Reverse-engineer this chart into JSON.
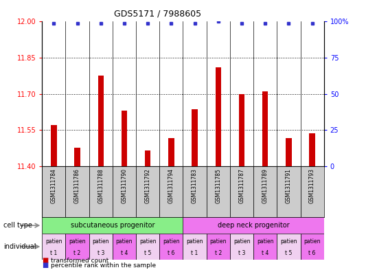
{
  "title": "GDS5171 / 7988605",
  "samples": [
    "GSM1311784",
    "GSM1311786",
    "GSM1311788",
    "GSM1311790",
    "GSM1311792",
    "GSM1311794",
    "GSM1311783",
    "GSM1311785",
    "GSM1311787",
    "GSM1311789",
    "GSM1311791",
    "GSM1311793"
  ],
  "bar_values": [
    11.57,
    11.475,
    11.775,
    11.63,
    11.465,
    11.515,
    11.635,
    11.81,
    11.7,
    11.71,
    11.515,
    11.535
  ],
  "percentile_values": [
    99,
    99,
    99,
    99,
    99,
    99,
    99,
    100,
    99,
    99,
    99,
    99
  ],
  "ylim_left": [
    11.4,
    12.0
  ],
  "ylim_right": [
    0,
    100
  ],
  "yticks_left": [
    11.4,
    11.55,
    11.7,
    11.85,
    12.0
  ],
  "yticks_right": [
    0,
    25,
    50,
    75,
    100
  ],
  "bar_color": "#cc0000",
  "dot_color": "#3333cc",
  "cell_types": [
    "subcutaneous progenitor",
    "deep neck progenitor"
  ],
  "cell_type_colors": [
    "#88ee88",
    "#ee77ee"
  ],
  "individuals": [
    "patien\nt 1",
    "patien\nt 2",
    "patien\nt 3",
    "patien\nt 4",
    "patien\nt 5",
    "patien\nt 6",
    "patien\nt 1",
    "patien\nt 2",
    "patien\nt 3",
    "patien\nt 4",
    "patien\nt 5",
    "patien\nt 6"
  ],
  "individual_bg_colors": [
    "#f0d0f0",
    "#ee77ee",
    "#f0d0f0",
    "#ee77ee",
    "#f0d0f0",
    "#ee77ee",
    "#f0d0f0",
    "#ee77ee",
    "#f0d0f0",
    "#ee77ee",
    "#f0d0f0",
    "#ee77ee"
  ],
  "legend_bar_label": "transformed count",
  "legend_dot_label": "percentile rank within the sample",
  "row_label_cell_type": "cell type",
  "row_label_individual": "individual",
  "sample_bg": "#cccccc",
  "bar_width": 0.25
}
